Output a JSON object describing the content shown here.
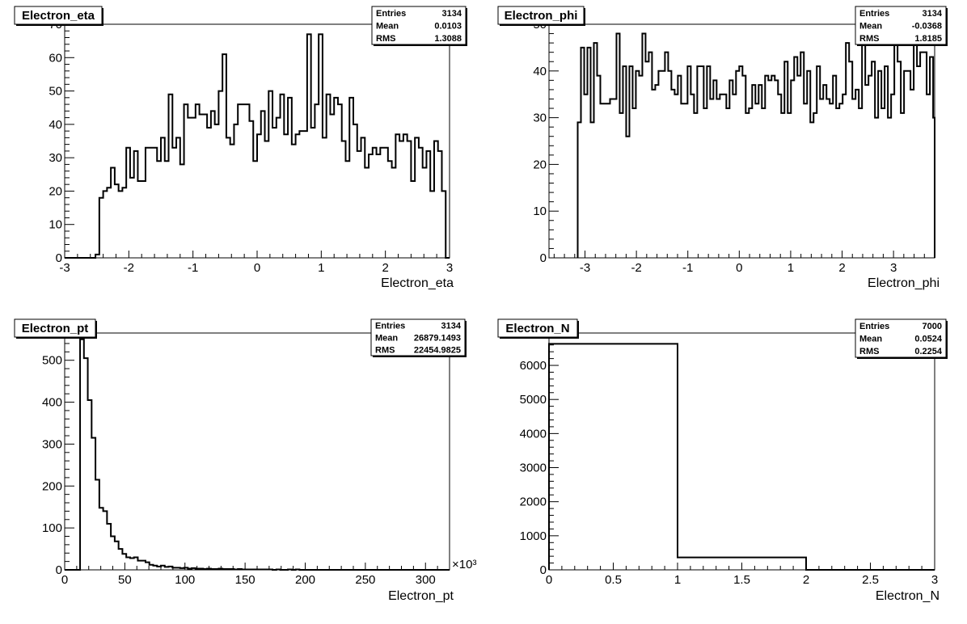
{
  "chart_data": [
    {
      "type": "bar",
      "title": "Electron_eta",
      "xlabel": "Electron_eta",
      "ylabel": "",
      "xlim": [
        -3,
        3
      ],
      "ylim": [
        0,
        70
      ],
      "xticks": [
        -3,
        -2,
        -1,
        0,
        1,
        2,
        3
      ],
      "xtick_labels": [
        "-3",
        "-2",
        "-1",
        "0",
        "1",
        "2",
        "3"
      ],
      "yticks": [
        0,
        10,
        20,
        30,
        40,
        50,
        60,
        70
      ],
      "ytick_labels": [
        "0",
        "10",
        "20",
        "30",
        "40",
        "50",
        "60",
        "70"
      ],
      "exponent_label": "",
      "stats": {
        "entries_label": "Entries",
        "entries": "3134",
        "mean_label": "Mean",
        "mean": "0.0103",
        "rms_label": "RMS",
        "rms": "1.3088"
      },
      "bin_edges_start": -3,
      "bin_width": 0.06,
      "values": [
        0,
        0,
        0,
        0,
        0,
        0,
        0,
        0,
        1,
        18,
        20,
        21,
        27,
        22,
        20,
        21,
        33,
        24,
        32,
        23,
        23,
        33,
        33,
        33,
        29,
        36,
        29,
        49,
        33,
        36,
        28,
        46,
        42,
        42,
        46,
        43,
        43,
        39,
        44,
        40,
        50,
        61,
        36,
        34,
        40,
        46,
        46,
        46,
        41,
        29,
        37,
        44,
        35,
        50,
        39,
        42,
        49,
        37,
        48,
        34,
        37,
        38,
        38,
        67,
        39,
        46,
        67,
        36,
        49,
        43,
        48,
        46,
        35,
        29,
        48,
        40,
        32,
        36,
        27,
        31,
        33,
        31,
        33,
        33,
        29,
        27,
        37,
        35,
        37,
        35,
        23,
        36,
        33,
        27,
        32,
        20,
        35,
        32,
        20,
        0
      ],
      "grid": false
    },
    {
      "type": "bar",
      "title": "Electron_phi",
      "xlabel": "Electron_phi",
      "ylabel": "",
      "xlim": [
        -3.7,
        3.8
      ],
      "ylim": [
        0,
        50
      ],
      "xticks": [
        -3,
        -2,
        -1,
        0,
        1,
        2,
        3
      ],
      "xtick_labels": [
        "-3",
        "-2",
        "-1",
        "0",
        "1",
        "2",
        "3"
      ],
      "yticks": [
        0,
        10,
        20,
        30,
        40,
        50
      ],
      "ytick_labels": [
        "0",
        "10",
        "20",
        "30",
        "40",
        "50"
      ],
      "exponent_label": "",
      "stats": {
        "entries_label": "Entries",
        "entries": "3134",
        "mean_label": "Mean",
        "mean": "-0.0368",
        "rms_label": "RMS",
        "rms": "1.8185"
      },
      "bin_edges_start": -3.1416,
      "bin_width": 0.062832,
      "values": [
        29,
        45,
        35,
        45,
        29,
        46,
        39,
        33,
        33,
        33,
        34,
        34,
        48,
        31,
        41,
        26,
        41,
        32,
        40,
        39,
        48,
        42,
        44,
        36,
        37,
        40,
        40,
        44,
        40,
        36,
        35,
        39,
        33,
        33,
        41,
        35,
        31,
        41,
        41,
        32,
        41,
        34,
        38,
        34,
        35,
        35,
        32,
        38,
        35,
        40,
        41,
        39,
        31,
        32,
        37,
        33,
        37,
        32,
        39,
        38,
        39,
        38,
        35,
        31,
        42,
        31,
        38,
        43,
        39,
        44,
        33,
        40,
        29,
        31,
        41,
        34,
        37,
        34,
        33,
        39,
        32,
        33,
        35,
        46,
        42,
        34,
        36,
        32,
        46,
        37,
        39,
        42,
        30,
        40,
        32,
        41,
        30,
        35,
        47,
        42,
        31,
        40,
        40,
        36,
        46,
        41,
        44,
        44,
        35,
        43,
        30,
        29,
        27,
        30,
        34,
        40,
        44,
        44,
        39,
        49,
        43,
        32,
        46,
        40,
        36,
        43,
        32,
        40,
        46,
        31,
        45,
        42,
        45,
        42,
        45,
        45,
        47,
        33,
        31,
        41,
        29,
        39,
        42,
        36,
        32,
        36,
        43,
        33,
        40,
        46,
        45,
        40,
        39,
        44,
        46,
        48,
        45,
        48,
        26,
        32,
        44,
        46,
        42,
        36,
        40,
        40,
        32,
        40,
        34,
        40,
        30,
        34,
        39,
        40,
        32,
        32,
        34,
        40,
        34,
        34,
        40,
        31,
        31,
        36,
        33,
        33,
        28,
        33,
        31,
        37,
        42,
        36,
        40,
        45,
        31,
        36,
        40,
        39,
        42,
        35,
        38,
        40,
        33,
        35,
        33,
        47,
        36,
        40,
        40,
        46,
        38,
        34,
        31,
        44,
        35,
        38,
        42,
        31,
        33,
        32,
        38,
        34,
        31,
        40,
        40,
        41,
        35,
        29,
        29,
        33,
        32,
        43,
        35,
        43,
        35,
        46,
        34,
        38,
        46,
        31,
        40,
        37,
        30,
        45,
        33,
        33,
        34,
        36,
        33,
        30,
        37,
        39,
        40,
        31,
        40,
        44,
        41,
        29,
        38,
        31,
        34,
        31,
        28,
        30,
        28,
        28,
        31,
        34,
        32,
        27,
        39,
        42,
        46,
        38,
        31,
        28,
        42,
        43,
        30,
        38,
        29,
        26,
        34,
        36,
        32,
        30,
        39,
        28,
        38,
        35,
        42,
        38,
        37,
        38,
        33,
        36,
        37,
        45,
        43,
        47,
        42,
        30,
        40,
        42,
        40,
        46,
        35,
        35,
        45,
        38,
        44,
        49,
        35,
        45,
        39,
        45,
        40,
        40,
        33,
        43,
        36,
        29,
        26,
        25,
        35,
        41,
        40,
        32,
        32,
        29,
        38,
        45,
        38,
        40,
        33,
        33,
        46,
        33,
        32,
        33,
        38,
        35,
        40,
        40,
        29,
        45,
        31,
        31,
        46,
        40,
        48,
        41,
        28,
        30,
        39,
        33,
        33,
        25,
        42,
        43,
        42,
        43,
        35,
        35,
        34,
        38,
        32,
        33,
        40,
        31,
        30,
        37,
        28,
        34,
        29,
        37,
        39,
        40,
        32,
        42,
        31,
        36,
        32,
        38,
        30,
        40,
        33,
        42,
        32,
        36,
        30,
        38,
        30,
        40,
        39,
        45,
        42,
        37,
        33,
        31,
        26,
        36,
        39,
        42,
        30,
        30,
        19,
        0
      ],
      "values_trimmed": true,
      "grid": false
    },
    {
      "type": "bar",
      "title": "Electron_pt",
      "xlabel": "Electron_pt",
      "ylabel": "",
      "xlim": [
        0,
        320
      ],
      "ylim": [
        0,
        565
      ],
      "xticks": [
        0,
        50,
        100,
        150,
        200,
        250,
        300
      ],
      "xtick_labels": [
        "0",
        "50",
        "100",
        "150",
        "200",
        "250",
        "300"
      ],
      "yticks": [
        0,
        100,
        200,
        300,
        400,
        500
      ],
      "ytick_labels": [
        "0",
        "100",
        "200",
        "300",
        "400",
        "500"
      ],
      "exponent_label": "×10³",
      "stats": {
        "entries_label": "Entries",
        "entries": "3134",
        "mean_label": "Mean",
        "mean": "26879.1493",
        "rms_label": "RMS",
        "rms": "22454.9825"
      },
      "bin_edges_start": 0,
      "bin_width": 3.2,
      "values": [
        0,
        0,
        0,
        0,
        550,
        505,
        405,
        315,
        215,
        148,
        140,
        110,
        80,
        68,
        50,
        38,
        30,
        28,
        30,
        22,
        22,
        18,
        12,
        10,
        8,
        10,
        7,
        8,
        5,
        5,
        4,
        5,
        3,
        4,
        3,
        3,
        2,
        3,
        2,
        2,
        3,
        2,
        2,
        2,
        1,
        2,
        1,
        1,
        1,
        1,
        1,
        1,
        1,
        1,
        0,
        1,
        0,
        0,
        1,
        0,
        1,
        0,
        0,
        0,
        0,
        0,
        0,
        0,
        0,
        0,
        0,
        0,
        0,
        0,
        0,
        0,
        0,
        0,
        0,
        0,
        0,
        0,
        0,
        0,
        0,
        0,
        0,
        0,
        0,
        0,
        0,
        0,
        0,
        0,
        0,
        0,
        0,
        0,
        0,
        0
      ],
      "grid": false
    },
    {
      "type": "bar",
      "title": "Electron_N",
      "xlabel": "Electron_N",
      "ylabel": "",
      "xlim": [
        0,
        3
      ],
      "ylim": [
        0,
        6950
      ],
      "xticks": [
        0,
        0.5,
        1,
        1.5,
        2,
        2.5,
        3
      ],
      "xtick_labels": [
        "0",
        "0.5",
        "1",
        "1.5",
        "2",
        "2.5",
        "3"
      ],
      "yticks": [
        0,
        1000,
        2000,
        3000,
        4000,
        5000,
        6000
      ],
      "ytick_labels": [
        "0",
        "1000",
        "2000",
        "3000",
        "4000",
        "5000",
        "6000"
      ],
      "exponent_label": "",
      "stats": {
        "entries_label": "Entries",
        "entries": "7000",
        "mean_label": "Mean",
        "mean": "0.0524",
        "rms_label": "RMS",
        "rms": "0.2254"
      },
      "bin_edges_start": 0,
      "bin_width": 1,
      "values": [
        6634,
        366,
        0
      ],
      "grid": false
    }
  ]
}
